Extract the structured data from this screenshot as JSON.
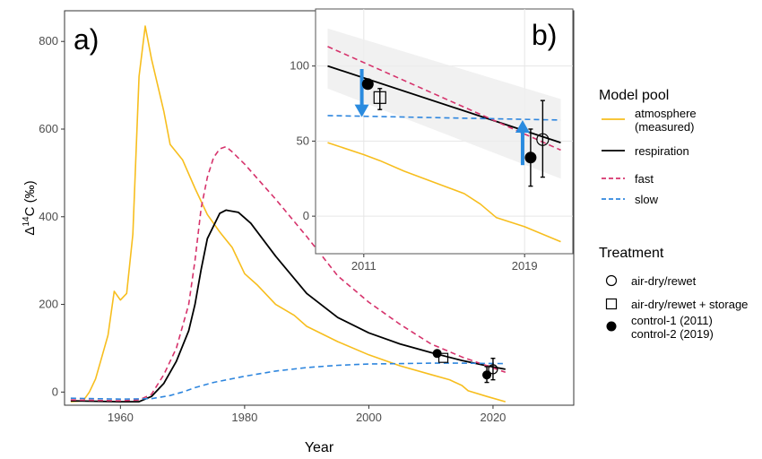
{
  "colors": {
    "atmosphere": "#F7BE1E",
    "respiration": "#000000",
    "fast": "#D6336C",
    "slow": "#2E86DE",
    "arrow": "#2A8BDF",
    "band": "#EEEEEE"
  },
  "legend": {
    "pool_title": "Model pool",
    "pool_items": [
      {
        "key": "atmosphere",
        "label": [
          "atmosphere",
          "(measured)"
        ],
        "style": "solid"
      },
      {
        "key": "respiration",
        "label": [
          "respiration"
        ],
        "style": "solid"
      },
      {
        "key": "fast",
        "label": [
          "fast"
        ],
        "style": "dashed"
      },
      {
        "key": "slow",
        "label": [
          "slow"
        ],
        "style": "dashed"
      }
    ],
    "treatment_title": "Treatment",
    "treatment_items": [
      {
        "shape": "open-circle",
        "label": [
          "air-dry/rewet"
        ]
      },
      {
        "shape": "open-square",
        "label": [
          "air-dry/rewet + storage"
        ]
      },
      {
        "shape": "filled-circle",
        "label": [
          "control-1 (2011)",
          "control-2 (2019)"
        ]
      }
    ]
  },
  "chart_data": [
    {
      "panel": "a)",
      "type": "line",
      "xlabel": "Year",
      "ylabel": "Δ14C (‰)",
      "xlim": [
        1951,
        2033
      ],
      "ylim": [
        -30,
        870
      ],
      "xticks": [
        1960,
        1980,
        2000,
        2020
      ],
      "yticks": [
        0,
        200,
        400,
        600,
        800
      ],
      "grid": false,
      "series": [
        {
          "name": "atmosphere",
          "points": [
            [
              1952,
              -22
            ],
            [
              1954,
              -20
            ],
            [
              1955,
              0
            ],
            [
              1956,
              30
            ],
            [
              1957,
              80
            ],
            [
              1958,
              130
            ],
            [
              1959,
              230
            ],
            [
              1960,
              210
            ],
            [
              1961,
              225
            ],
            [
              1962,
              360
            ],
            [
              1963,
              720
            ],
            [
              1964,
              835
            ],
            [
              1965,
              760
            ],
            [
              1966,
              700
            ],
            [
              1967,
              640
            ],
            [
              1968,
              565
            ],
            [
              1970,
              530
            ],
            [
              1972,
              465
            ],
            [
              1974,
              405
            ],
            [
              1976,
              365
            ],
            [
              1978,
              330
            ],
            [
              1980,
              270
            ],
            [
              1982,
              245
            ],
            [
              1985,
              200
            ],
            [
              1988,
              175
            ],
            [
              1990,
              150
            ],
            [
              1995,
              115
            ],
            [
              2000,
              85
            ],
            [
              2005,
              60
            ],
            [
              2010,
              40
            ],
            [
              2013,
              28
            ],
            [
              2015,
              15
            ],
            [
              2016,
              3
            ],
            [
              2019,
              -10
            ],
            [
              2022,
              -22
            ]
          ]
        },
        {
          "name": "respiration",
          "points": [
            [
              1952,
              -20
            ],
            [
              1960,
              -22
            ],
            [
              1963,
              -22
            ],
            [
              1965,
              -10
            ],
            [
              1967,
              20
            ],
            [
              1969,
              70
            ],
            [
              1971,
              140
            ],
            [
              1972,
              200
            ],
            [
              1973,
              280
            ],
            [
              1974,
              350
            ],
            [
              1976,
              408
            ],
            [
              1977,
              415
            ],
            [
              1979,
              410
            ],
            [
              1981,
              385
            ],
            [
              1985,
              310
            ],
            [
              1990,
              225
            ],
            [
              1995,
              170
            ],
            [
              2000,
              135
            ],
            [
              2005,
              110
            ],
            [
              2010,
              90
            ],
            [
              2015,
              72
            ],
            [
              2019,
              60
            ],
            [
              2022,
              52
            ]
          ]
        },
        {
          "name": "fast",
          "points": [
            [
              1952,
              -18
            ],
            [
              1960,
              -20
            ],
            [
              1963,
              -18
            ],
            [
              1965,
              -5
            ],
            [
              1967,
              40
            ],
            [
              1969,
              100
            ],
            [
              1971,
              200
            ],
            [
              1972,
              300
            ],
            [
              1973,
              420
            ],
            [
              1974,
              490
            ],
            [
              1975,
              535
            ],
            [
              1976,
              555
            ],
            [
              1977,
              560
            ],
            [
              1978,
              548
            ],
            [
              1980,
              520
            ],
            [
              1985,
              440
            ],
            [
              1990,
              355
            ],
            [
              1995,
              265
            ],
            [
              2000,
              205
            ],
            [
              2005,
              155
            ],
            [
              2010,
              110
            ],
            [
              2015,
              80
            ],
            [
              2020,
              55
            ],
            [
              2022,
              45
            ]
          ]
        },
        {
          "name": "slow",
          "points": [
            [
              1952,
              -14
            ],
            [
              1960,
              -16
            ],
            [
              1965,
              -15
            ],
            [
              1968,
              -8
            ],
            [
              1970,
              0
            ],
            [
              1972,
              10
            ],
            [
              1975,
              22
            ],
            [
              1980,
              36
            ],
            [
              1985,
              48
            ],
            [
              1990,
              56
            ],
            [
              1995,
              61
            ],
            [
              2000,
              64
            ],
            [
              2005,
              65
            ],
            [
              2010,
              66
            ],
            [
              2015,
              66
            ],
            [
              2022,
              65
            ]
          ]
        }
      ],
      "points": [
        {
          "treatment": "control-1 (2011)",
          "shape": "filled-circle",
          "x": 2011,
          "y": 88
        },
        {
          "treatment": "air-dry/rewet + storage",
          "shape": "open-square",
          "x": 2012,
          "y": 78
        },
        {
          "treatment": "air-dry/rewet",
          "shape": "open-circle",
          "x": 2020,
          "y": 52,
          "err": [
            28,
            77
          ]
        },
        {
          "treatment": "control-2 (2019)",
          "shape": "filled-circle",
          "x": 2019,
          "y": 39,
          "err": [
            22,
            58
          ]
        }
      ]
    },
    {
      "panel": "b)",
      "type": "line",
      "xlabel": "",
      "ylabel": "",
      "xlim": [
        2008.6,
        2021.4
      ],
      "ylim": [
        -25,
        138
      ],
      "xticks": [
        2011,
        2019
      ],
      "yticks": [
        0,
        50,
        100
      ],
      "grid": true,
      "band": {
        "x": [
          2009.2,
          2020.8
        ],
        "upper": [
          125,
          78
        ],
        "lower": [
          85,
          25
        ]
      },
      "series": [
        {
          "name": "atmosphere",
          "points": [
            [
              2009.2,
              49
            ],
            [
              2011,
              41
            ],
            [
              2011.8,
              37
            ],
            [
              2013,
              30
            ],
            [
              2014,
              25
            ],
            [
              2015,
              20
            ],
            [
              2016,
              15
            ],
            [
              2016.8,
              8
            ],
            [
              2017.6,
              -1
            ],
            [
              2019,
              -7
            ],
            [
              2020.8,
              -17
            ]
          ]
        },
        {
          "name": "respiration",
          "points": [
            [
              2009.2,
              100
            ],
            [
              2020.8,
              49
            ]
          ]
        },
        {
          "name": "fast",
          "points": [
            [
              2009.2,
              113
            ],
            [
              2020.8,
              44
            ]
          ]
        },
        {
          "name": "slow",
          "points": [
            [
              2009.2,
              67
            ],
            [
              2020.8,
              64
            ]
          ]
        }
      ],
      "points": [
        {
          "treatment": "control-1 (2011)",
          "shape": "filled-circle",
          "x": 2011.2,
          "y": 88
        },
        {
          "treatment": "air-dry/rewet + storage",
          "shape": "open-square",
          "x": 2011.8,
          "y": 79,
          "err": [
            71,
            85
          ]
        },
        {
          "treatment": "air-dry/rewet",
          "shape": "open-circle",
          "x": 2019.9,
          "y": 51,
          "err": [
            26,
            77
          ]
        },
        {
          "treatment": "control-2 (2019)",
          "shape": "filled-circle",
          "x": 2019.3,
          "y": 39,
          "err": [
            20,
            58
          ]
        }
      ],
      "arrows": [
        {
          "x": 2010.9,
          "from": 98,
          "to": 66
        },
        {
          "x": 2018.9,
          "from": 34,
          "to": 64
        }
      ]
    }
  ]
}
